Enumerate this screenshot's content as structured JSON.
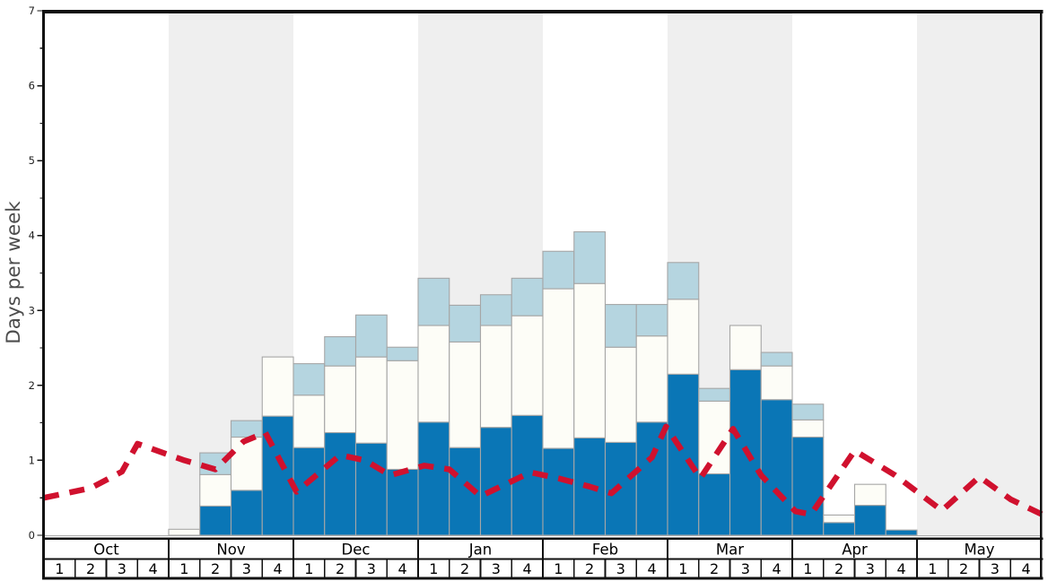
{
  "chart": {
    "y_axis": {
      "label": "Days per week",
      "min": 0,
      "max": 7,
      "major_step": 1,
      "minor_step": 0.5,
      "tick_labels": [
        "0",
        "1",
        "2",
        "3",
        "4",
        "5",
        "6",
        "7"
      ]
    },
    "months": [
      {
        "name": "Oct",
        "shaded": false,
        "weeks": [
          "1",
          "2",
          "3",
          "4"
        ]
      },
      {
        "name": "Nov",
        "shaded": true,
        "weeks": [
          "1",
          "2",
          "3",
          "4"
        ]
      },
      {
        "name": "Dec",
        "shaded": false,
        "weeks": [
          "1",
          "2",
          "3",
          "4"
        ]
      },
      {
        "name": "Jan",
        "shaded": true,
        "weeks": [
          "1",
          "2",
          "3",
          "4"
        ]
      },
      {
        "name": "Feb",
        "shaded": false,
        "weeks": [
          "1",
          "2",
          "3",
          "4"
        ]
      },
      {
        "name": "Mar",
        "shaded": true,
        "weeks": [
          "1",
          "2",
          "3",
          "4"
        ]
      },
      {
        "name": "Apr",
        "shaded": false,
        "weeks": [
          "1",
          "2",
          "3",
          "4"
        ]
      },
      {
        "name": "May",
        "shaded": true,
        "weeks": [
          "1",
          "2",
          "3",
          "4"
        ]
      }
    ]
  },
  "colors": {
    "dark_blue": "#0a76b6",
    "light_blue": "#b5d5e0",
    "white_bar": "#fdfdf7",
    "bar_border": "#a6a6a6",
    "band_gray": "#efefef",
    "red_line": "#d0112e",
    "axis": "#111111",
    "grid_zero_line": "#aaaaaa",
    "tick_text": "#222222",
    "axis_label_text": "#4d4d4d",
    "table_border": "#111111"
  },
  "chart_data": {
    "type": "bar",
    "subtype": "stacked-bars-with-dashed-trend-line",
    "title": "",
    "xlabel": "",
    "ylabel": "Days per week",
    "ylim": [
      0,
      7
    ],
    "grid": false,
    "legend": "none",
    "categories": [
      "Oct W1",
      "Oct W2",
      "Oct W3",
      "Oct W4",
      "Nov W1",
      "Nov W2",
      "Nov W3",
      "Nov W4",
      "Dec W1",
      "Dec W2",
      "Dec W3",
      "Dec W4",
      "Jan W1",
      "Jan W2",
      "Jan W3",
      "Jan W4",
      "Feb W1",
      "Feb W2",
      "Feb W3",
      "Feb W4",
      "Mar W1",
      "Mar W2",
      "Mar W3",
      "Mar W4",
      "Apr W1",
      "Apr W2",
      "Apr W3",
      "Apr W4",
      "May W1",
      "May W2",
      "May W3",
      "May W4"
    ],
    "series": [
      {
        "name": "dark-blue-bottom-segment",
        "color_key": "dark_blue",
        "values": [
          0,
          0,
          0,
          0,
          0,
          0.39,
          0.6,
          1.59,
          1.17,
          1.37,
          1.23,
          0.88,
          1.51,
          1.17,
          1.44,
          1.6,
          1.16,
          1.3,
          1.24,
          1.51,
          2.15,
          0.82,
          2.21,
          1.81,
          1.31,
          0.17,
          0.4,
          0.07,
          0,
          0,
          0,
          0
        ]
      },
      {
        "name": "white-middle-segment",
        "color_key": "white_bar",
        "values": [
          0,
          0,
          0,
          0,
          0.08,
          0.42,
          0.71,
          0.79,
          0.7,
          0.89,
          1.15,
          1.45,
          1.29,
          1.41,
          1.36,
          1.33,
          2.13,
          2.06,
          1.27,
          1.15,
          1.0,
          0.97,
          0.59,
          0.45,
          0.23,
          0.1,
          0.28,
          0,
          0,
          0,
          0,
          0
        ]
      },
      {
        "name": "light-blue-top-segment",
        "color_key": "light_blue",
        "values": [
          0,
          0,
          0,
          0,
          0,
          0.29,
          0.22,
          0,
          0.42,
          0.39,
          0.56,
          0.18,
          0.63,
          0.49,
          0.41,
          0.5,
          0.5,
          0.69,
          0.57,
          0.42,
          0.49,
          0.17,
          0,
          0.18,
          0.21,
          0,
          0,
          0,
          0,
          0,
          0,
          0
        ]
      }
    ],
    "line": {
      "name": "red-dashed-trend-line",
      "style": "dashed",
      "color_key": "red_line",
      "points_week_units": [
        [
          0,
          0.5
        ],
        [
          1.5,
          0.63
        ],
        [
          2.5,
          0.85
        ],
        [
          3.0,
          1.22
        ],
        [
          4.5,
          1.0
        ],
        [
          5.5,
          0.88
        ],
        [
          6.4,
          1.25
        ],
        [
          7.1,
          1.37
        ],
        [
          8.1,
          0.58
        ],
        [
          9.5,
          1.07
        ],
        [
          10.3,
          1.0
        ],
        [
          11.1,
          0.8
        ],
        [
          12.2,
          0.93
        ],
        [
          13.0,
          0.88
        ],
        [
          14.0,
          0.52
        ],
        [
          15.6,
          0.84
        ],
        [
          16.5,
          0.76
        ],
        [
          17.5,
          0.65
        ],
        [
          18.2,
          0.56
        ],
        [
          19.5,
          1.04
        ],
        [
          19.95,
          1.45
        ],
        [
          21.05,
          0.76
        ],
        [
          22.1,
          1.42
        ],
        [
          23.0,
          0.8
        ],
        [
          24.1,
          0.32
        ],
        [
          24.6,
          0.28
        ],
        [
          26.0,
          1.13
        ],
        [
          27.3,
          0.8
        ],
        [
          28.8,
          0.33
        ],
        [
          30.0,
          0.78
        ],
        [
          31.0,
          0.48
        ],
        [
          32.0,
          0.28
        ]
      ]
    }
  }
}
